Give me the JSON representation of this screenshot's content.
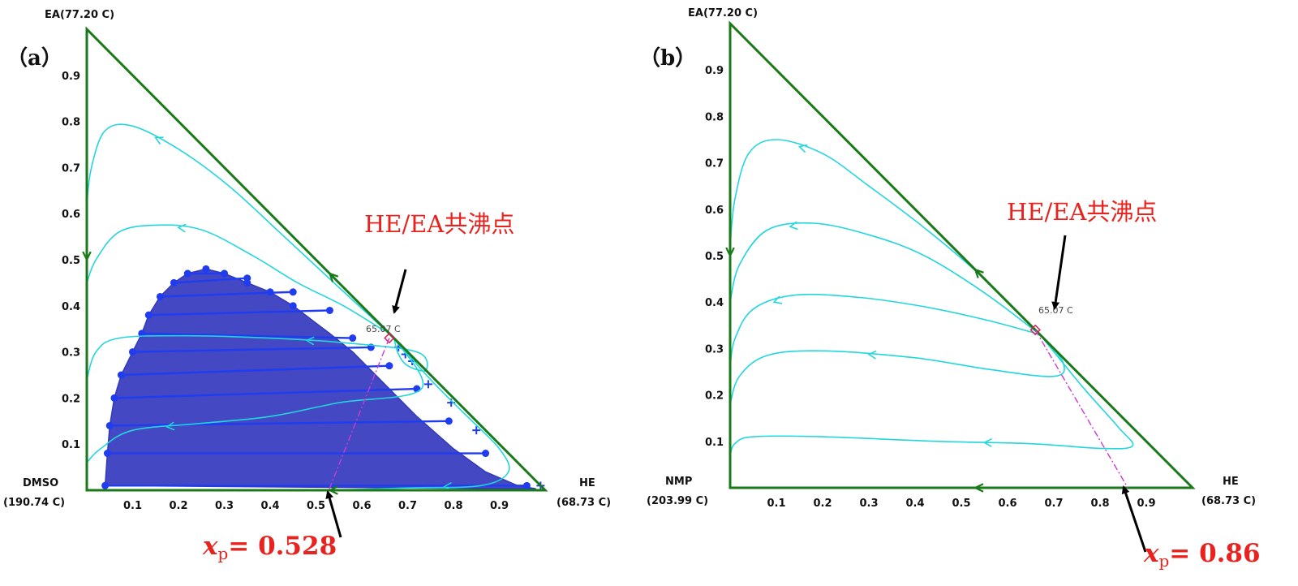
{
  "chart_data": [
    {
      "type": "ternary-residue-curve-map",
      "panel_label": "（a）",
      "vertices": {
        "top": "EA(77.20 C)",
        "left_line1": "DMSO",
        "left_line2": "(190.74 C)",
        "right_line1": "HE",
        "right_line2": "(68.73 C)"
      },
      "x_ticks": [
        "0.1",
        "0.2",
        "0.3",
        "0.4",
        "0.5",
        "0.6",
        "0.7",
        "0.8",
        "0.9"
      ],
      "y_ticks": [
        "0.1",
        "0.2",
        "0.3",
        "0.4",
        "0.5",
        "0.6",
        "0.7",
        "0.8",
        "0.9"
      ],
      "azeotrope": {
        "label": "HE/EA共沸点",
        "value": "65.07 C",
        "x": 0.66,
        "y": 0.33
      },
      "feed_point": {
        "prefix": "x",
        "sub": "p",
        "text": "= 0.528",
        "x": 0.528
      },
      "two_liquid_envelope": {
        "points": [
          [
            0.04,
            0.01
          ],
          [
            0.045,
            0.08
          ],
          [
            0.05,
            0.14
          ],
          [
            0.06,
            0.2
          ],
          [
            0.075,
            0.25
          ],
          [
            0.1,
            0.3
          ],
          [
            0.12,
            0.34
          ],
          [
            0.135,
            0.38
          ],
          [
            0.16,
            0.42
          ],
          [
            0.19,
            0.45
          ],
          [
            0.22,
            0.47
          ],
          [
            0.26,
            0.48
          ],
          [
            0.3,
            0.47
          ],
          [
            0.35,
            0.45
          ],
          [
            0.4,
            0.43
          ],
          [
            0.45,
            0.4
          ],
          [
            0.49,
            0.37
          ],
          [
            0.53,
            0.34
          ],
          [
            0.58,
            0.3
          ],
          [
            0.62,
            0.26
          ],
          [
            0.66,
            0.22
          ],
          [
            0.72,
            0.16
          ],
          [
            0.8,
            0.09
          ],
          [
            0.87,
            0.04
          ],
          [
            0.94,
            0.01
          ],
          [
            0.98,
            0.003
          ]
        ],
        "tie_lines": [
          [
            [
              0.04,
              0.01
            ],
            [
              0.96,
              0.01
            ]
          ],
          [
            [
              0.045,
              0.08
            ],
            [
              0.87,
              0.08
            ]
          ],
          [
            [
              0.05,
              0.14
            ],
            [
              0.79,
              0.15
            ]
          ],
          [
            [
              0.06,
              0.2
            ],
            [
              0.72,
              0.22
            ]
          ],
          [
            [
              0.075,
              0.25
            ],
            [
              0.66,
              0.27
            ]
          ],
          [
            [
              0.1,
              0.3
            ],
            [
              0.62,
              0.31
            ]
          ],
          [
            [
              0.12,
              0.34
            ],
            [
              0.58,
              0.33
            ]
          ],
          [
            [
              0.135,
              0.38
            ],
            [
              0.53,
              0.39
            ]
          ],
          [
            [
              0.16,
              0.42
            ],
            [
              0.45,
              0.43
            ]
          ],
          [
            [
              0.19,
              0.45
            ],
            [
              0.35,
              0.46
            ]
          ],
          [
            [
              0.22,
              0.47
            ],
            [
              0.3,
              0.47
            ]
          ]
        ],
        "plus_markers": [
          [
            0.68,
            0.31
          ],
          [
            0.695,
            0.295
          ],
          [
            0.71,
            0.28
          ],
          [
            0.745,
            0.23
          ],
          [
            0.795,
            0.19
          ],
          [
            0.85,
            0.13
          ],
          [
            0.99,
            0.01
          ]
        ]
      },
      "residue_curves": [
        [
          [
            0.67,
            0.33
          ],
          [
            0.55,
            0.44
          ],
          [
            0.42,
            0.56
          ],
          [
            0.31,
            0.66
          ],
          [
            0.2,
            0.74
          ],
          [
            0.1,
            0.79
          ],
          [
            0.04,
            0.78
          ],
          [
            0.01,
            0.7
          ],
          [
            0.0,
            0.62
          ]
        ],
        [
          [
            0.65,
            0.345
          ],
          [
            0.56,
            0.4
          ],
          [
            0.46,
            0.45
          ],
          [
            0.36,
            0.51
          ],
          [
            0.25,
            0.565
          ],
          [
            0.15,
            0.575
          ],
          [
            0.07,
            0.56
          ],
          [
            0.02,
            0.5
          ],
          [
            0.0,
            0.45
          ]
        ],
        [
          [
            0.67,
            0.33
          ],
          [
            0.68,
            0.295
          ],
          [
            0.7,
            0.27
          ],
          [
            0.74,
            0.26
          ],
          [
            0.72,
            0.3
          ],
          [
            0.56,
            0.32
          ],
          [
            0.4,
            0.33
          ],
          [
            0.22,
            0.335
          ],
          [
            0.07,
            0.33
          ],
          [
            0.02,
            0.3
          ],
          [
            0.0,
            0.24
          ]
        ],
        [
          [
            0.67,
            0.33
          ],
          [
            0.75,
            0.24
          ],
          [
            0.83,
            0.16
          ],
          [
            0.9,
            0.09
          ],
          [
            0.92,
            0.04
          ],
          [
            0.86,
            0.01
          ],
          [
            0.7,
            0.005
          ],
          [
            0.5,
            0.0
          ],
          [
            0.2,
            0.0
          ],
          [
            0.02,
            0.0
          ]
        ],
        [
          [
            0.67,
            0.33
          ],
          [
            0.73,
            0.22
          ],
          [
            0.55,
            0.19
          ],
          [
            0.4,
            0.16
          ],
          [
            0.25,
            0.145
          ],
          [
            0.1,
            0.13
          ],
          [
            0.03,
            0.09
          ],
          [
            0.0,
            0.06
          ]
        ]
      ]
    },
    {
      "type": "ternary-residue-curve-map",
      "panel_label": "（b）",
      "vertices": {
        "top": "EA(77.20 C)",
        "left_line1": "NMP",
        "left_line2": "(203.99 C)",
        "right_line1": "HE",
        "right_line2": "(68.73 C)"
      },
      "x_ticks": [
        "0.1",
        "0.2",
        "0.3",
        "0.4",
        "0.5",
        "0.6",
        "0.7",
        "0.8",
        "0.9"
      ],
      "y_ticks": [
        "0.1",
        "0.2",
        "0.3",
        "0.4",
        "0.5",
        "0.6",
        "0.7",
        "0.8",
        "0.9"
      ],
      "azeotrope": {
        "label": "HE/EA共沸点",
        "value": "65.07 C",
        "x": 0.66,
        "y": 0.34
      },
      "feed_point": {
        "prefix": "x",
        "sub": "p",
        "text": "= 0.86",
        "x": 0.86
      },
      "residue_curves": [
        [
          [
            0.67,
            0.33
          ],
          [
            0.55,
            0.45
          ],
          [
            0.42,
            0.56
          ],
          [
            0.3,
            0.65
          ],
          [
            0.2,
            0.72
          ],
          [
            0.1,
            0.75
          ],
          [
            0.04,
            0.72
          ],
          [
            0.01,
            0.62
          ],
          [
            0.0,
            0.52
          ]
        ],
        [
          [
            0.67,
            0.33
          ],
          [
            0.55,
            0.42
          ],
          [
            0.42,
            0.5
          ],
          [
            0.3,
            0.545
          ],
          [
            0.18,
            0.57
          ],
          [
            0.08,
            0.555
          ],
          [
            0.02,
            0.48
          ],
          [
            0.0,
            0.4
          ]
        ],
        [
          [
            0.67,
            0.33
          ],
          [
            0.56,
            0.36
          ],
          [
            0.42,
            0.39
          ],
          [
            0.28,
            0.41
          ],
          [
            0.14,
            0.415
          ],
          [
            0.05,
            0.385
          ],
          [
            0.01,
            0.32
          ],
          [
            0.0,
            0.26
          ]
        ],
        [
          [
            0.67,
            0.33
          ],
          [
            0.72,
            0.27
          ],
          [
            0.7,
            0.24
          ],
          [
            0.56,
            0.255
          ],
          [
            0.4,
            0.28
          ],
          [
            0.2,
            0.295
          ],
          [
            0.08,
            0.285
          ],
          [
            0.02,
            0.24
          ],
          [
            0.0,
            0.18
          ]
        ],
        [
          [
            0.67,
            0.33
          ],
          [
            0.76,
            0.22
          ],
          [
            0.84,
            0.13
          ],
          [
            0.87,
            0.09
          ],
          [
            0.8,
            0.085
          ],
          [
            0.65,
            0.095
          ],
          [
            0.45,
            0.1
          ],
          [
            0.2,
            0.11
          ],
          [
            0.05,
            0.11
          ],
          [
            0.01,
            0.095
          ],
          [
            0.0,
            0.07
          ]
        ]
      ]
    }
  ]
}
